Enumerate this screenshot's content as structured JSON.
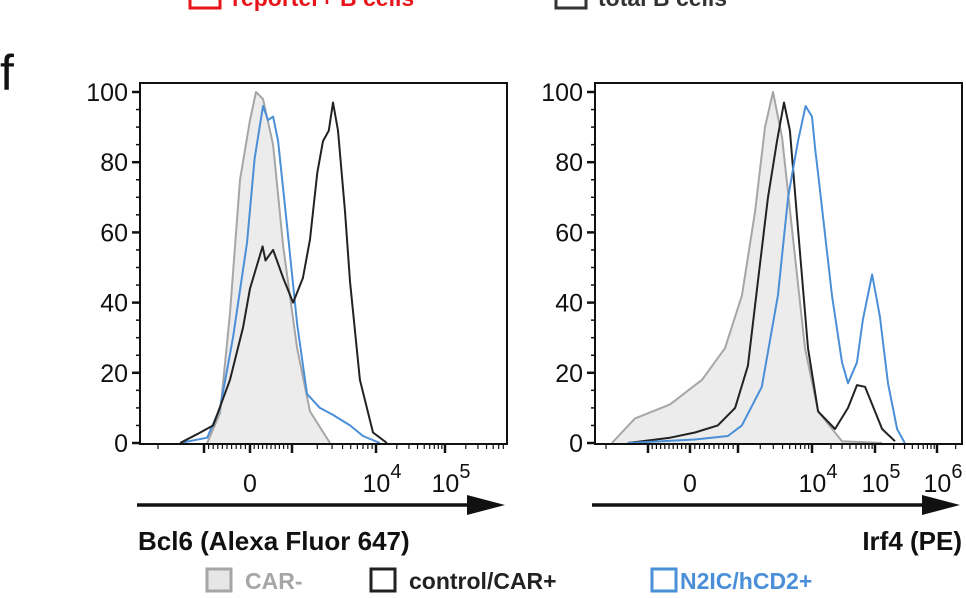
{
  "panel_label": "f",
  "top_legend": [
    {
      "label": "reporter+ B cells",
      "color": "#e8141b"
    },
    {
      "label": "total B cells",
      "color": "#333333"
    }
  ],
  "legend": [
    {
      "label": "CAR-",
      "color": "#a6a6a6",
      "fill": "#e6e6e6"
    },
    {
      "label": "control/CAR+",
      "color": "#222222"
    },
    {
      "label": "N2IC/hCD2+",
      "color": "#4a8fd8"
    }
  ],
  "chart_data": [
    {
      "type": "line",
      "title": "",
      "xlabel": "Bcl6 (Alexa Fluor 647)",
      "ylabel": "",
      "x_scale": "biexponential",
      "ylim": [
        0,
        100
      ],
      "yticks": [
        "0",
        "20",
        "40",
        "60",
        "80",
        "100"
      ],
      "xtick_labels": [
        {
          "value": 0,
          "base": "0",
          "exp": ""
        },
        {
          "value": 10000,
          "base": "10",
          "exp": "4"
        },
        {
          "value": 100000,
          "base": "10",
          "exp": "5"
        }
      ],
      "grid": false,
      "series": [
        {
          "name": "CAR-",
          "filled": true,
          "x": [
            -930,
            -650,
            -435,
            -217,
            0,
            143,
            310,
            550,
            790,
            1150,
            1640,
            2830
          ],
          "y": [
            0,
            8.6,
            37,
            75,
            92,
            100,
            98,
            85,
            56,
            27,
            9,
            0
          ]
        },
        {
          "name": "N2IC/hCD2+",
          "x": [
            -1520,
            -930,
            -650,
            -370,
            -65,
            110,
            310,
            430,
            550,
            670,
            880,
            1150,
            1510,
            2150,
            3080,
            4900,
            7000,
            11400
          ],
          "y": [
            0,
            1.5,
            10,
            30,
            57,
            81,
            96,
            92,
            93,
            86,
            62,
            34,
            14,
            10,
            8,
            5,
            2,
            0
          ]
        },
        {
          "name": "control/CAR+",
          "x": [
            -1520,
            -1150,
            -800,
            -435,
            -150,
            0,
            150,
            300,
            370,
            550,
            790,
            1030,
            1350,
            1640,
            2000,
            2340,
            2740,
            3080,
            3530,
            4280,
            4900,
            6440,
            9200,
            14400
          ],
          "y": [
            0,
            2.5,
            5,
            18,
            33,
            44,
            50,
            56,
            52,
            55,
            47,
            40,
            47,
            58,
            77,
            86,
            89,
            97,
            89,
            66,
            46,
            18,
            3,
            0
          ]
        }
      ]
    },
    {
      "type": "line",
      "title": "",
      "xlabel": "Irf4 (PE)",
      "ylabel": "",
      "x_scale": "biexponential",
      "ylim": [
        0,
        100
      ],
      "yticks": [
        "0",
        "20",
        "40",
        "60",
        "80",
        "100"
      ],
      "xtick_labels": [
        {
          "value": 0,
          "base": "0",
          "exp": ""
        },
        {
          "value": 10000,
          "base": "10",
          "exp": "4"
        },
        {
          "value": 100000,
          "base": "10",
          "exp": "5"
        },
        {
          "value": 1000000,
          "base": "10",
          "exp": "6"
        }
      ],
      "grid": false,
      "series": [
        {
          "name": "CAR-",
          "filled": true,
          "x": [
            -1860,
            -1310,
            -476,
            250,
            730,
            1130,
            1700,
            2320,
            2970,
            3940,
            5370,
            8040,
            12500,
            29900,
            130000
          ],
          "y": [
            0,
            7,
            11,
            18,
            27,
            42,
            66,
            90,
            100,
            87,
            61,
            27,
            9,
            0.5,
            0
          ]
        },
        {
          "name": "control/CAR+",
          "x": [
            -1480,
            -476,
            104,
            580,
            940,
            1360,
            1860,
            2540,
            3370,
            4180,
            5030,
            6460,
            8830,
            12500,
            23200,
            37300,
            51800,
            69400,
            100000,
            130000,
            210000
          ],
          "y": [
            0,
            1.5,
            3,
            5,
            10,
            22,
            46,
            70,
            86,
            97,
            89,
            61,
            27,
            9,
            4,
            10,
            16.5,
            16,
            9,
            4,
            0.5
          ]
        },
        {
          "name": "N2IC/hCD2+",
          "x": [
            -1480,
            104,
            790,
            1130,
            2100,
            3460,
            4760,
            6460,
            8200,
            10000,
            11200,
            13000,
            20800,
            29900,
            37300,
            51800,
            64000,
            90000,
            120000,
            162000,
            227000,
            302000
          ],
          "y": [
            0,
            1,
            2,
            5,
            16,
            42,
            70,
            86,
            96,
            93,
            84,
            74,
            42,
            23,
            17,
            23,
            35,
            48,
            36,
            17,
            4,
            0
          ]
        }
      ]
    }
  ]
}
